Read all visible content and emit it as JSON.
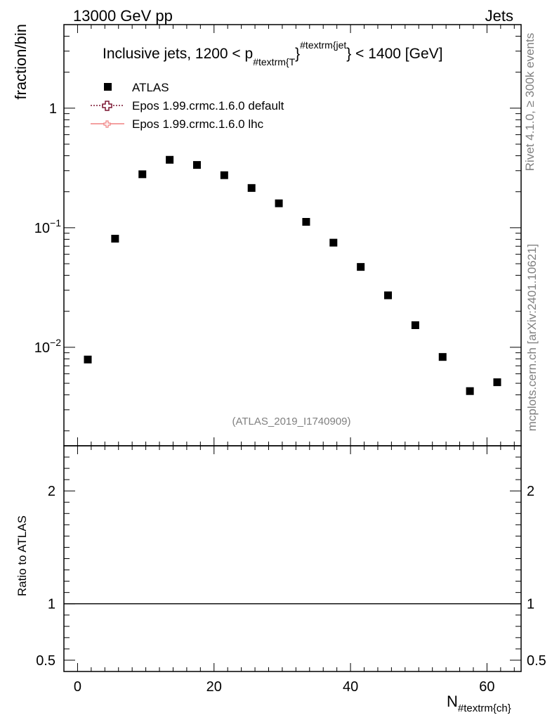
{
  "header": {
    "left": "13000 GeV pp",
    "right": "Jets"
  },
  "side_labels": {
    "rivet": "Rivet 4.1.0, ≥ 300k events",
    "mcplots": "mcplots.cern.ch [arXiv:2401.10621]"
  },
  "chart_data": {
    "type": "scatter",
    "title": {
      "prefix": "Inclusive jets, 1200 < p",
      "sub": "#textrm{T",
      "brace": "}",
      "sup": "#textrm{jet",
      "suffix": "} < 1400 [GeV]"
    },
    "analysis_id": "(ATLAS_2019_I1740909)",
    "ylabel_top": "fraction/bin",
    "ylabel_bottom": "Ratio to ATLAS",
    "xlabel": {
      "main": "N",
      "sub": "#textrm{ch}"
    },
    "xlim": [
      -2,
      65
    ],
    "ylim_top": [
      0.0015,
      5.0
    ],
    "ylim_bottom": [
      0.4,
      2.4
    ],
    "y_scale_top": "log",
    "x_ticks": [
      {
        "value": 0,
        "label": "0"
      },
      {
        "value": 20,
        "label": "20"
      },
      {
        "value": 40,
        "label": "40"
      },
      {
        "value": 60,
        "label": "60"
      }
    ],
    "y_ticks_top": [
      {
        "value": 1,
        "label": "1",
        "exp": ""
      },
      {
        "value": 0.1,
        "label": "10",
        "exp": "−1"
      },
      {
        "value": 0.01,
        "label": "10",
        "exp": "−2"
      }
    ],
    "y_ticks_bottom": [
      {
        "value": 2,
        "label": "2"
      },
      {
        "value": 1,
        "label": "1"
      },
      {
        "value": 0.5,
        "label": "0.5"
      }
    ],
    "legend": [
      {
        "label": "ATLAS",
        "style": "marker-square"
      },
      {
        "label": "Epos 1.99.crmc.1.6.0 default",
        "style": "dotted-cross",
        "color": "#7a1530"
      },
      {
        "label": "Epos 1.99.crmc.1.6.0 lhc",
        "style": "line-cross",
        "color": "#f08080"
      }
    ],
    "series": [
      {
        "name": "ATLAS",
        "x": [
          1.5,
          5.5,
          9.5,
          13.5,
          17.5,
          21.5,
          25.5,
          29.5,
          33.5,
          37.5,
          41.5,
          45.5,
          49.5,
          53.5,
          57.5,
          61.5
        ],
        "y": [
          0.0079,
          0.081,
          0.28,
          0.37,
          0.335,
          0.275,
          0.215,
          0.16,
          0.112,
          0.075,
          0.047,
          0.0272,
          0.0153,
          0.0083,
          0.0043,
          0.0051
        ]
      }
    ],
    "ratio_reference": 1.0
  }
}
